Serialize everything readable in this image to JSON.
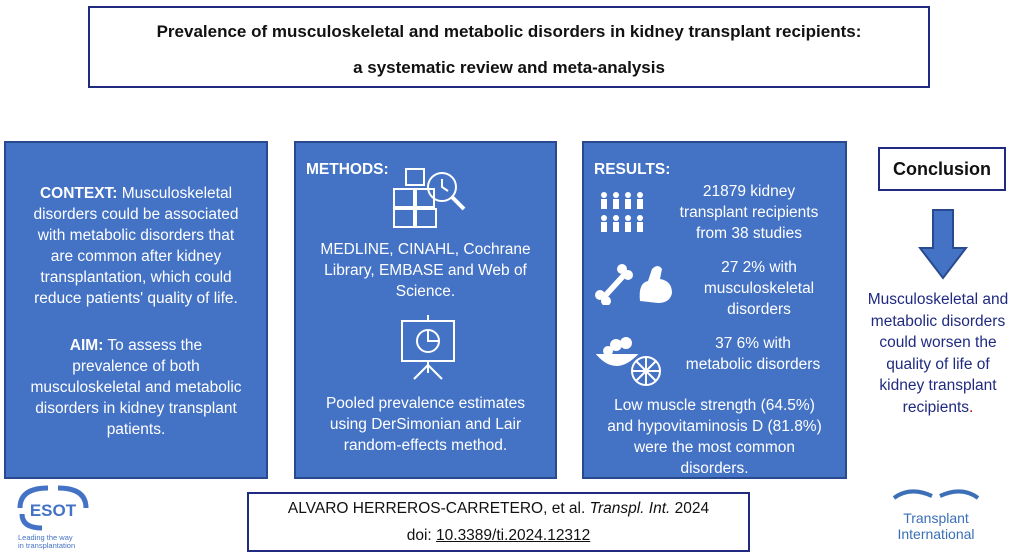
{
  "title": {
    "line1": "Prevalence of musculoskeletal and metabolic disorders in kidney transplant recipients:",
    "line2": "a systematic review and meta-analysis"
  },
  "context": {
    "label": "CONTEXT:",
    "text1": "Musculoskeletal",
    "lines": [
      "disorders could be associated",
      "with metabolic disorders that",
      "are common  after kidney",
      "transplantation, which could",
      "reduce patients' quality of life."
    ],
    "aim_label": "AIM:",
    "aim_text1": "To assess the",
    "aim_lines": [
      "prevalence of both",
      "musculoskeletal  and metabolic",
      "disorders in kidney transplant",
      "patients."
    ]
  },
  "methods": {
    "heading": "METHODS:",
    "databases": [
      "MEDLINE, CINAHL, Cochrane",
      "Library, EMBASE and Web of",
      "Science."
    ],
    "analysis": [
      "Pooled prevalence estimates",
      "using DerSimonian and Lair",
      "random-effects method."
    ]
  },
  "results": {
    "heading": "RESULTS:",
    "stat1": [
      "21879 kidney",
      "transplant recipients",
      "from 38 studies"
    ],
    "stat2": [
      "27 2% with",
      "musculoskeletal",
      "disorders"
    ],
    "stat3": [
      "37 6% with",
      "metabolic disorders"
    ],
    "summary": [
      "Low muscle strength (64.5%)",
      "and hypovitaminosis D (81.8%)",
      "were the most common",
      "disorders."
    ]
  },
  "conclusion": {
    "heading": "Conclusion",
    "lines": [
      "Musculoskeletal and",
      "metabolic disorders",
      "could worsen the",
      "quality of life of",
      "kidney transplant"
    ],
    "last": "recipients",
    "period": "."
  },
  "citation": {
    "authors": "ALVARO HERREROS-CARRETERO, et al.",
    "journal": "Transpl. Int.",
    "year": "2024",
    "doi_label": "doi:",
    "doi": "10.3389/ti.2024.12312"
  },
  "logos": {
    "esot_name": "ESOT",
    "esot_tagline1": "Leading the way",
    "esot_tagline2": "in transplantation",
    "ti_line1": "Transplant",
    "ti_line2": "International"
  },
  "colors": {
    "panel": "#4472c4",
    "border": "#1f2a80",
    "accent_red": "#c00000"
  }
}
